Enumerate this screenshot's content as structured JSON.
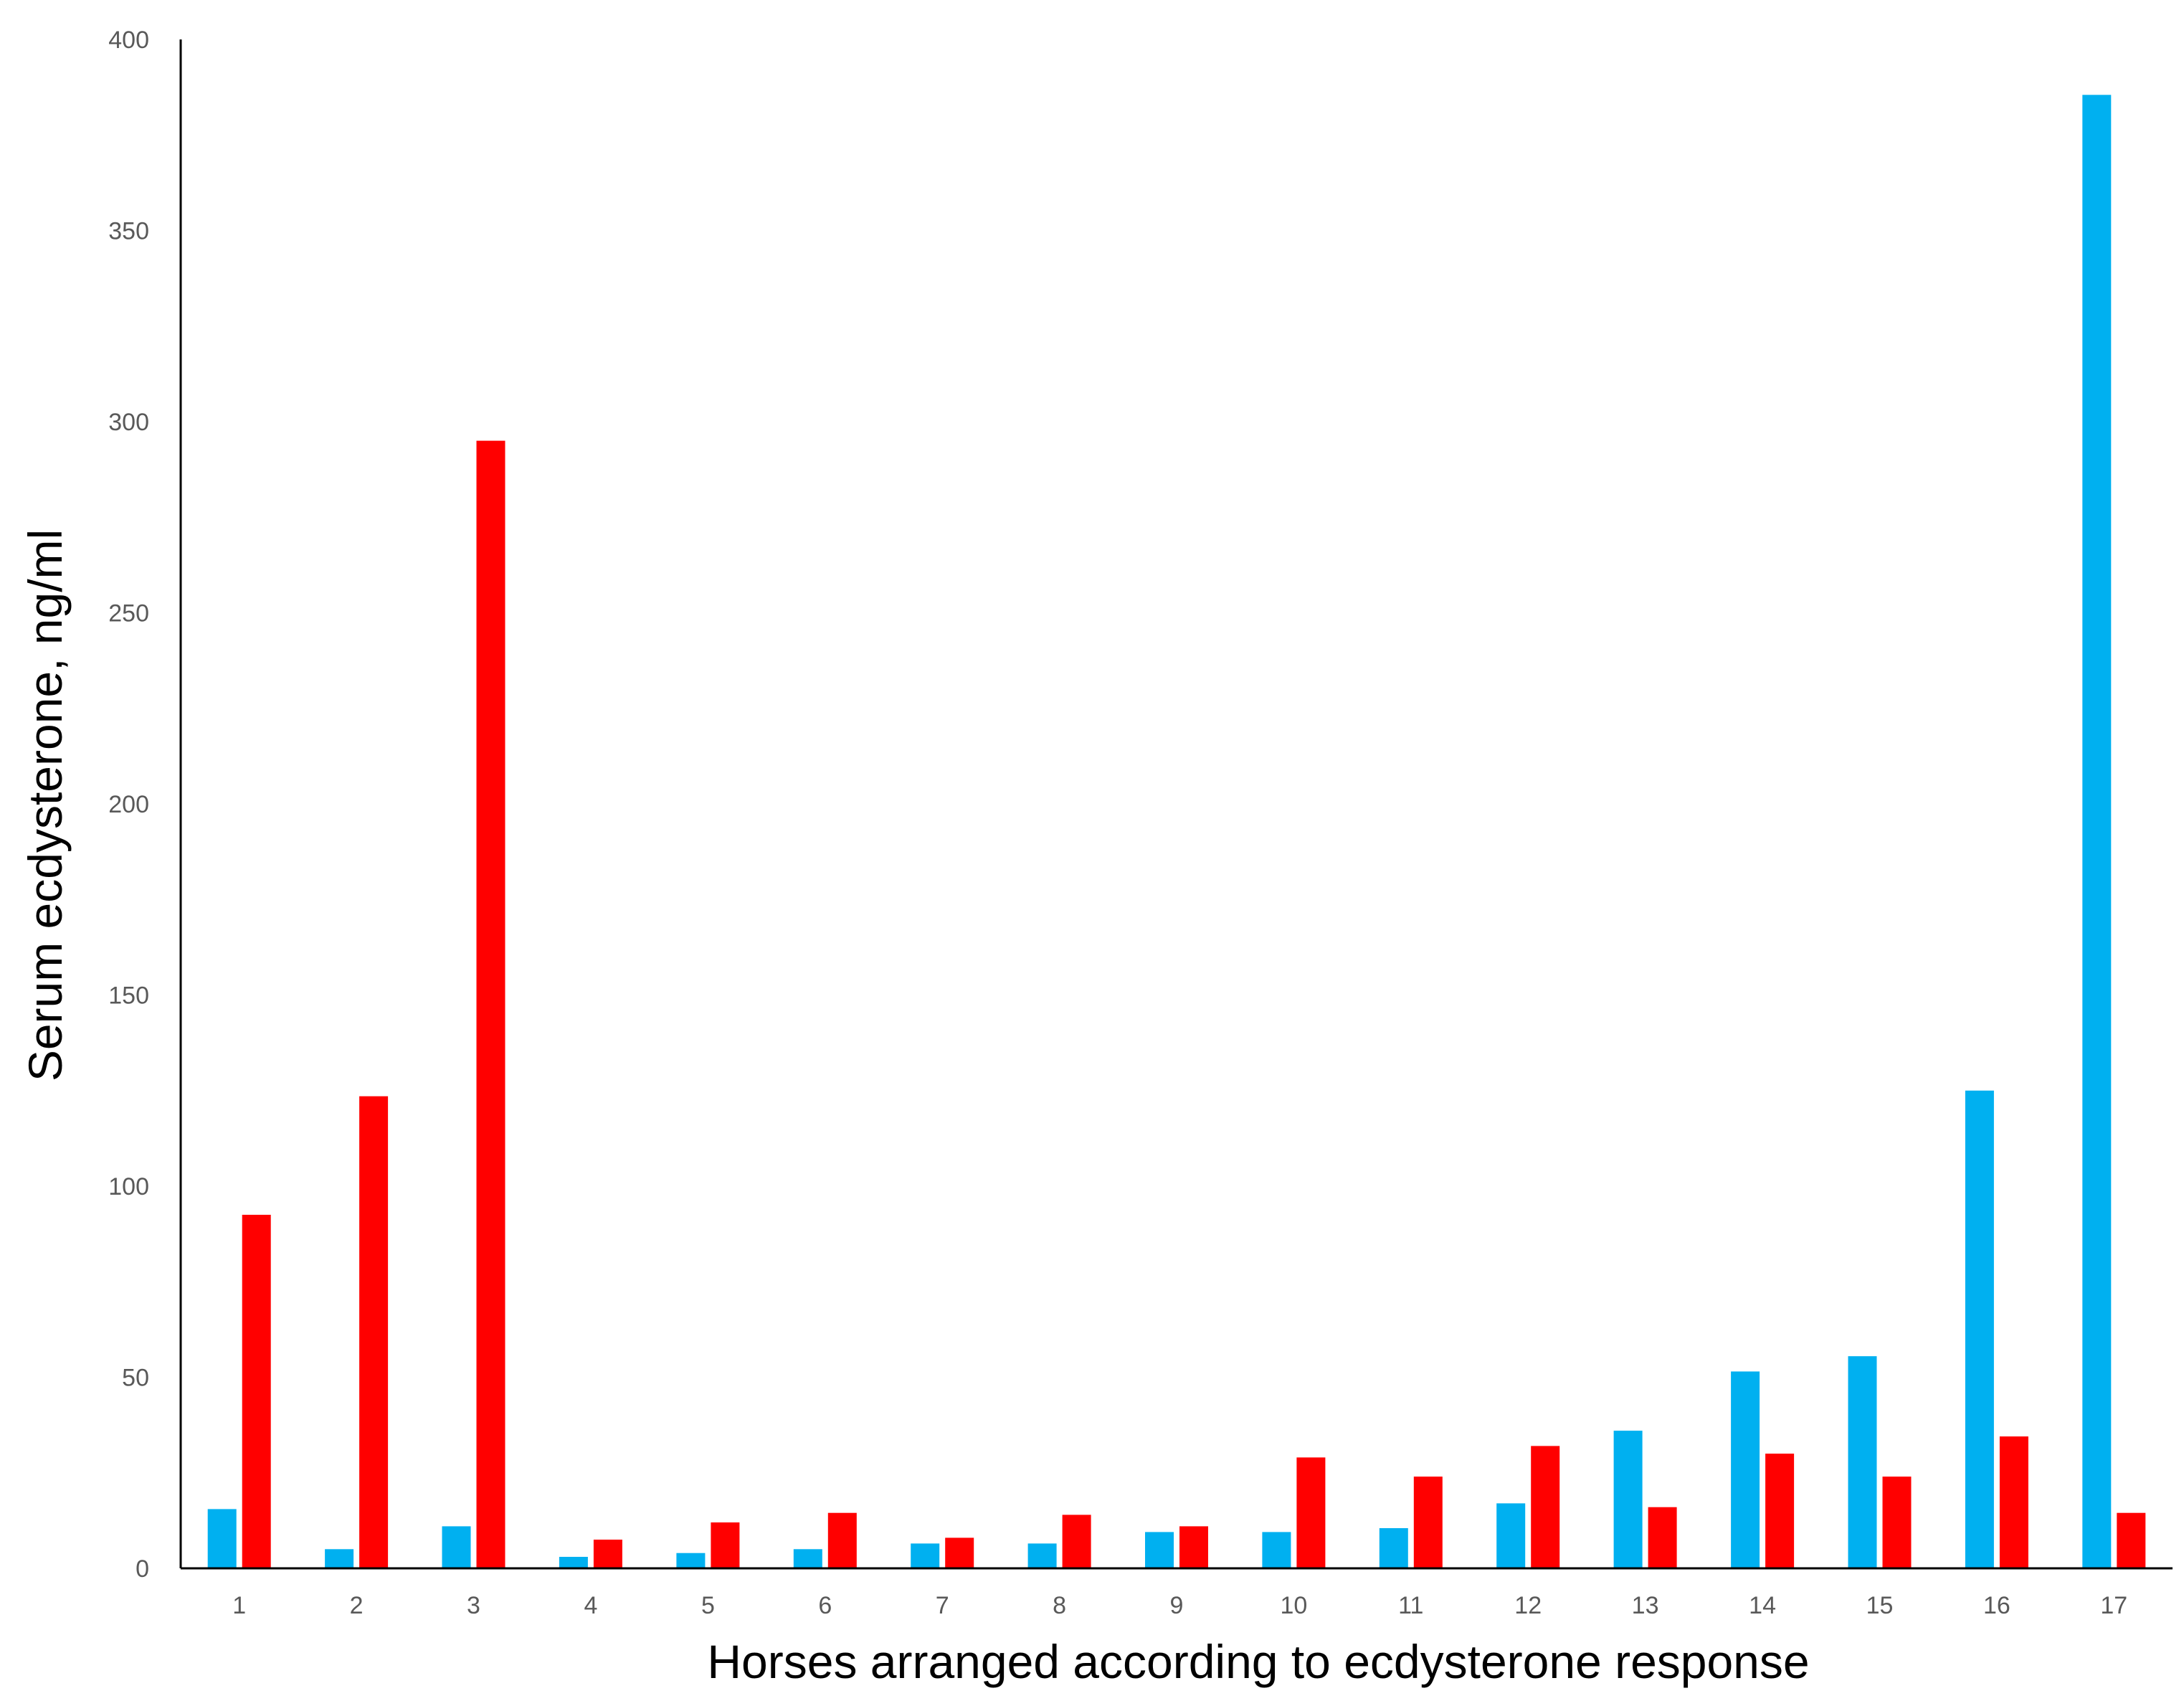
{
  "chart_data": {
    "type": "bar",
    "title": "",
    "xlabel": "Horses arranged according to ecdysterone response",
    "ylabel": "Serum ecdysterone, ng/ml",
    "categories": [
      "1",
      "2",
      "3",
      "4",
      "5",
      "6",
      "7",
      "8",
      "9",
      "10",
      "11",
      "12",
      "13",
      "14",
      "15",
      "16",
      "17"
    ],
    "series": [
      {
        "color": "#00b0f0",
        "values": [
          15.5,
          5,
          11,
          3,
          4,
          5,
          6.5,
          6.5,
          9.5,
          9.5,
          10.5,
          17,
          36,
          51.5,
          55.5,
          125,
          385.5
        ]
      },
      {
        "color": "#ff0000",
        "values": [
          92.5,
          123.5,
          295,
          7.5,
          12,
          14.5,
          8,
          14,
          11,
          29,
          24,
          32,
          16,
          30,
          24,
          34.5,
          14.5
        ]
      }
    ],
    "ylim": [
      0,
      400
    ],
    "yticks": [
      0,
      50,
      100,
      150,
      200,
      250,
      300,
      350,
      400
    ],
    "grid": false,
    "legend": "none"
  }
}
